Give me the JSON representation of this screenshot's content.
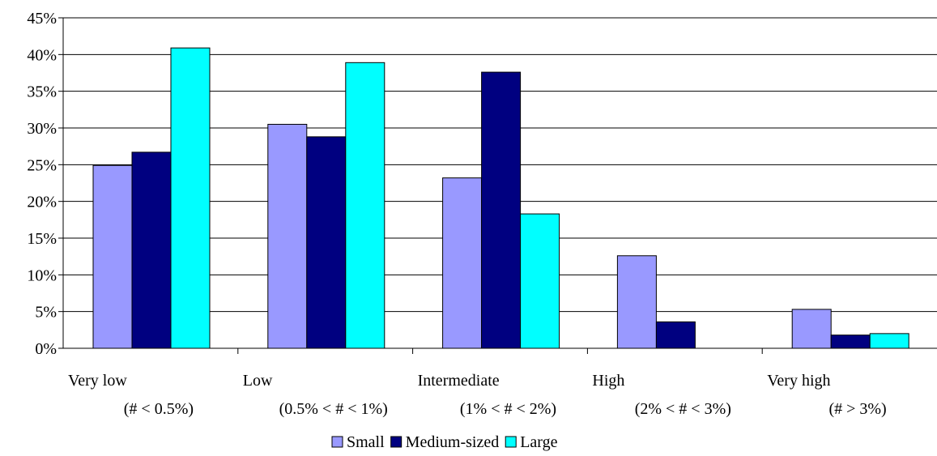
{
  "chart_data": {
    "type": "bar",
    "title": "",
    "xlabel": "",
    "ylabel": "",
    "categories": [
      {
        "name": "Very low",
        "range": "(# < 0.5%)"
      },
      {
        "name": "Low",
        "range": "(0.5% < # < 1%)"
      },
      {
        "name": "Intermediate",
        "range": "(1% < # < 2%)"
      },
      {
        "name": "High",
        "range": "(2% < # < 3%)"
      },
      {
        "name": "Very high",
        "range": "(# > 3%)"
      }
    ],
    "series": [
      {
        "name": "Small",
        "color": "#9999FF",
        "values": [
          24.9,
          30.5,
          23.2,
          12.6,
          5.3
        ]
      },
      {
        "name": "Medium-sized",
        "color": "#000080",
        "values": [
          26.7,
          28.8,
          37.6,
          3.6,
          1.8
        ]
      },
      {
        "name": "Large",
        "color": "#00FFFF",
        "values": [
          40.9,
          38.9,
          18.3,
          0,
          2.0
        ]
      }
    ],
    "ylim": [
      0,
      45
    ],
    "ytick_step": 5,
    "yticks": [
      "0%",
      "5%",
      "10%",
      "15%",
      "20%",
      "25%",
      "30%",
      "35%",
      "40%",
      "45%"
    ],
    "grid": true,
    "legend": "bottom"
  }
}
